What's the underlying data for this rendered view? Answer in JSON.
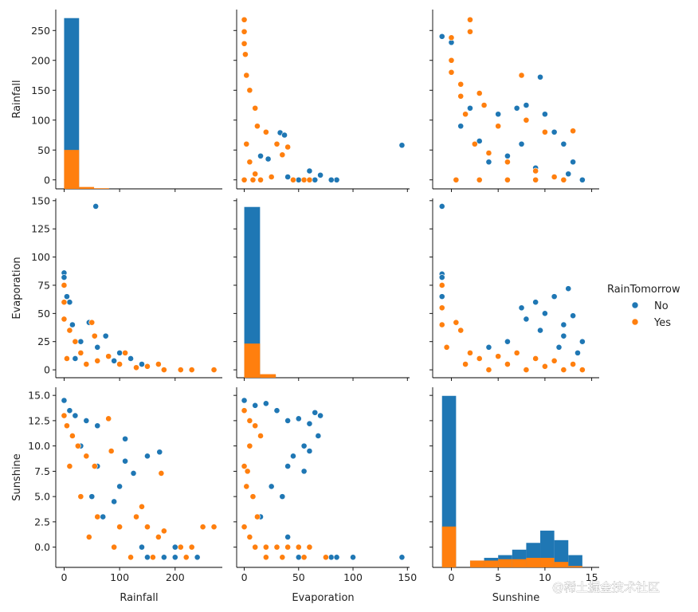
{
  "chart_data": {
    "type": "scatter",
    "variables": [
      "Rainfall",
      "Evaporation",
      "Sunshine"
    ],
    "hue": "RainTomorrow",
    "legend": {
      "title": "RainTomorrow",
      "placement": "right",
      "entries": [
        {
          "label": "No",
          "color": "#1f77b4"
        },
        {
          "label": "Yes",
          "color": "#ff7f0e"
        }
      ]
    },
    "axes": {
      "Rainfall": {
        "range": [
          -15,
          285
        ],
        "ticks": [
          0,
          100,
          200
        ],
        "tick_labels": [
          "0",
          "100",
          "200"
        ],
        "row_ticks": [
          0,
          50,
          100,
          150,
          200,
          250
        ],
        "row_tick_labels": [
          "0",
          "50",
          "100",
          "150",
          "200",
          "250"
        ]
      },
      "Evaporation": {
        "range": [
          -7,
          152
        ],
        "ticks": [
          0,
          50,
          100,
          150
        ],
        "tick_labels": [
          "0",
          "50",
          "100",
          "150"
        ],
        "row_ticks": [
          0,
          25,
          50,
          75,
          100,
          125,
          150
        ],
        "row_tick_labels": [
          "0",
          "25",
          "50",
          "75",
          "100",
          "125",
          "150"
        ]
      },
      "Sunshine": {
        "range": [
          -2,
          15.8
        ],
        "ticks": [
          0,
          5,
          10,
          15
        ],
        "tick_labels": [
          "0",
          "5",
          "10",
          "15"
        ],
        "row_ticks": [
          0,
          2.5,
          5,
          7.5,
          10,
          12.5,
          15
        ],
        "row_tick_labels": [
          "0.0",
          "2.5",
          "5.0",
          "7.5",
          "10.0",
          "12.5",
          "15.0"
        ]
      }
    },
    "histograms": {
      "Rainfall": {
        "bin_edges": [
          0,
          27,
          54,
          81,
          108,
          135,
          162,
          189,
          216,
          243,
          270
        ],
        "No": [
          272,
          0,
          0,
          0,
          0,
          0,
          0,
          0,
          0,
          0
        ],
        "Yes": [
          62,
          3,
          1,
          0,
          0,
          0,
          0,
          0,
          0,
          0
        ]
      },
      "Evaporation": {
        "bin_edges": [
          0,
          14.5,
          29,
          43.5,
          58,
          72.5,
          87,
          101.5,
          116,
          130.5,
          145
        ],
        "No": [
          145,
          2,
          0,
          0,
          0,
          0,
          0,
          0,
          0,
          0
        ],
        "Yes": [
          29,
          3,
          0,
          0,
          0,
          0,
          0,
          0,
          0,
          0
        ]
      },
      "Sunshine": {
        "bin_edges": [
          -1,
          0.5,
          2,
          3.5,
          5,
          6.5,
          8,
          9.5,
          11,
          12.5,
          14
        ],
        "No": [
          6.3,
          0,
          0.25,
          0.35,
          0.45,
          0.65,
          0.9,
          1.35,
          1.0,
          0.45
        ],
        "Yes": [
          1.5,
          0,
          0.25,
          0.25,
          0.3,
          0.3,
          0.35,
          0.35,
          0.2,
          0.05
        ]
      }
    },
    "pairs": [
      {
        "x": "Evaporation",
        "y": "Rainfall",
        "No": [
          [
            145,
            58
          ],
          [
            33,
            79
          ],
          [
            37,
            75
          ],
          [
            22,
            35
          ],
          [
            15,
            40
          ],
          [
            60,
            15
          ],
          [
            70,
            8
          ],
          [
            85,
            0
          ],
          [
            80,
            0
          ],
          [
            65,
            0
          ],
          [
            50,
            0
          ],
          [
            40,
            5
          ]
        ],
        "Yes": [
          [
            0,
            268
          ],
          [
            0,
            248
          ],
          [
            0,
            228
          ],
          [
            1,
            210
          ],
          [
            2,
            175
          ],
          [
            5,
            150
          ],
          [
            10,
            120
          ],
          [
            20,
            80
          ],
          [
            30,
            60
          ],
          [
            40,
            55
          ],
          [
            35,
            42
          ],
          [
            5,
            30
          ],
          [
            10,
            10
          ],
          [
            25,
            5
          ],
          [
            45,
            0
          ],
          [
            55,
            0
          ],
          [
            60,
            0
          ],
          [
            0,
            0
          ],
          [
            8,
            0
          ],
          [
            15,
            0
          ],
          [
            2,
            60
          ],
          [
            12,
            90
          ]
        ]
      },
      {
        "x": "Sunshine",
        "y": "Rainfall",
        "No": [
          [
            9.5,
            172
          ],
          [
            -1,
            240
          ],
          [
            0,
            230
          ],
          [
            2,
            120
          ],
          [
            5,
            110
          ],
          [
            7,
            120
          ],
          [
            8,
            125
          ],
          [
            10,
            110
          ],
          [
            11,
            80
          ],
          [
            12,
            60
          ],
          [
            13,
            30
          ],
          [
            14,
            0
          ],
          [
            12.5,
            10
          ],
          [
            9,
            20
          ],
          [
            6,
            40
          ],
          [
            3,
            65
          ],
          [
            1,
            90
          ],
          [
            4,
            30
          ],
          [
            7.5,
            60
          ]
        ],
        "Yes": [
          [
            2,
            268
          ],
          [
            2,
            248
          ],
          [
            0,
            238
          ],
          [
            0,
            200
          ],
          [
            0,
            180
          ],
          [
            1,
            160
          ],
          [
            3,
            145
          ],
          [
            3.5,
            125
          ],
          [
            7.5,
            175
          ],
          [
            1.5,
            110
          ],
          [
            5,
            90
          ],
          [
            8,
            100
          ],
          [
            10,
            80
          ],
          [
            13,
            82
          ],
          [
            4,
            45
          ],
          [
            6,
            30
          ],
          [
            9,
            15
          ],
          [
            11,
            5
          ],
          [
            0.5,
            0
          ],
          [
            3,
            0
          ],
          [
            6,
            0
          ],
          [
            9,
            0
          ],
          [
            12,
            0
          ],
          [
            2.5,
            60
          ],
          [
            1,
            140
          ]
        ]
      },
      {
        "x": "Rainfall",
        "y": "Evaporation",
        "No": [
          [
            57,
            145
          ],
          [
            0,
            86
          ],
          [
            0,
            82
          ],
          [
            5,
            65
          ],
          [
            10,
            60
          ],
          [
            15,
            40
          ],
          [
            45,
            42
          ],
          [
            75,
            30
          ],
          [
            100,
            15
          ],
          [
            120,
            10
          ],
          [
            140,
            5
          ],
          [
            60,
            20
          ],
          [
            30,
            25
          ],
          [
            90,
            8
          ],
          [
            20,
            10
          ]
        ],
        "Yes": [
          [
            0,
            75
          ],
          [
            0,
            60
          ],
          [
            0,
            45
          ],
          [
            10,
            35
          ],
          [
            20,
            25
          ],
          [
            50,
            42
          ],
          [
            55,
            30
          ],
          [
            110,
            15
          ],
          [
            170,
            5
          ],
          [
            180,
            0
          ],
          [
            210,
            0
          ],
          [
            230,
            0
          ],
          [
            270,
            0
          ],
          [
            150,
            3
          ],
          [
            100,
            5
          ],
          [
            60,
            8
          ],
          [
            30,
            15
          ],
          [
            5,
            10
          ],
          [
            80,
            12
          ],
          [
            130,
            2
          ],
          [
            40,
            5
          ]
        ]
      },
      {
        "x": "Sunshine",
        "y": "Evaporation",
        "No": [
          [
            -1,
            145
          ],
          [
            -1,
            85
          ],
          [
            -1,
            82
          ],
          [
            -1,
            65
          ],
          [
            7.5,
            55
          ],
          [
            9,
            60
          ],
          [
            11,
            65
          ],
          [
            12.5,
            72
          ],
          [
            10,
            50
          ],
          [
            8,
            45
          ],
          [
            13,
            48
          ],
          [
            12,
            30
          ],
          [
            14,
            25
          ],
          [
            13.5,
            15
          ],
          [
            6,
            25
          ],
          [
            4,
            20
          ],
          [
            11.5,
            20
          ],
          [
            9.5,
            35
          ],
          [
            12,
            40
          ]
        ],
        "Yes": [
          [
            -1,
            75
          ],
          [
            -1,
            55
          ],
          [
            -1,
            40
          ],
          [
            0.5,
            42
          ],
          [
            1,
            35
          ],
          [
            -0.5,
            20
          ],
          [
            2,
            15
          ],
          [
            3,
            10
          ],
          [
            5,
            12
          ],
          [
            7,
            15
          ],
          [
            9,
            10
          ],
          [
            11,
            8
          ],
          [
            13,
            5
          ],
          [
            14,
            0
          ],
          [
            12,
            0
          ],
          [
            4,
            0
          ],
          [
            8,
            0
          ],
          [
            10,
            3
          ],
          [
            1.5,
            5
          ],
          [
            6,
            5
          ]
        ]
      },
      {
        "x": "Rainfall",
        "y": "Sunshine",
        "No": [
          [
            0,
            14.5
          ],
          [
            10,
            13.5
          ],
          [
            20,
            13
          ],
          [
            40,
            12.5
          ],
          [
            60,
            12
          ],
          [
            80,
            12.7
          ],
          [
            110,
            10.7
          ],
          [
            150,
            9.0
          ],
          [
            172,
            9.4
          ],
          [
            125,
            7.3
          ],
          [
            110,
            8.5
          ],
          [
            100,
            6
          ],
          [
            90,
            4.5
          ],
          [
            130,
            3
          ],
          [
            200,
            0
          ],
          [
            240,
            -1
          ],
          [
            200,
            -1
          ],
          [
            180,
            -1
          ],
          [
            150,
            -1
          ],
          [
            140,
            0
          ],
          [
            60,
            8
          ],
          [
            30,
            10
          ],
          [
            50,
            5
          ],
          [
            70,
            3
          ]
        ],
        "Yes": [
          [
            0,
            13
          ],
          [
            5,
            12
          ],
          [
            15,
            11
          ],
          [
            25,
            10
          ],
          [
            40,
            9
          ],
          [
            55,
            8
          ],
          [
            80,
            12.7
          ],
          [
            85,
            9.5
          ],
          [
            175,
            7.3
          ],
          [
            180,
            1.6
          ],
          [
            140,
            4
          ],
          [
            130,
            3
          ],
          [
            150,
            2
          ],
          [
            170,
            1
          ],
          [
            250,
            2
          ],
          [
            270,
            2
          ],
          [
            210,
            0
          ],
          [
            230,
            0
          ],
          [
            220,
            -1
          ],
          [
            160,
            -1
          ],
          [
            120,
            -1
          ],
          [
            90,
            0
          ],
          [
            60,
            3
          ],
          [
            30,
            5
          ],
          [
            10,
            8
          ],
          [
            45,
            1
          ],
          [
            100,
            2
          ]
        ]
      },
      {
        "x": "Evaporation",
        "y": "Sunshine",
        "No": [
          [
            0,
            14.5
          ],
          [
            10,
            14
          ],
          [
            20,
            14.2
          ],
          [
            30,
            13.5
          ],
          [
            40,
            12.5
          ],
          [
            50,
            12.7
          ],
          [
            60,
            12.2
          ],
          [
            65,
            13.3
          ],
          [
            70,
            13
          ],
          [
            68,
            11
          ],
          [
            55,
            10
          ],
          [
            45,
            9
          ],
          [
            40,
            8
          ],
          [
            60,
            9.5
          ],
          [
            55,
            7.5
          ],
          [
            80,
            -1
          ],
          [
            100,
            -1
          ],
          [
            145,
            -1
          ],
          [
            85,
            -1
          ],
          [
            50,
            -1
          ],
          [
            40,
            1
          ],
          [
            35,
            5
          ],
          [
            25,
            6
          ],
          [
            15,
            3
          ]
        ],
        "Yes": [
          [
            0,
            13.5
          ],
          [
            5,
            12.5
          ],
          [
            10,
            12
          ],
          [
            15,
            11
          ],
          [
            5,
            10
          ],
          [
            0,
            8
          ],
          [
            2,
            6
          ],
          [
            8,
            5
          ],
          [
            12,
            3
          ],
          [
            0,
            2
          ],
          [
            5,
            1
          ],
          [
            10,
            0
          ],
          [
            20,
            0
          ],
          [
            30,
            0
          ],
          [
            40,
            0
          ],
          [
            50,
            0
          ],
          [
            60,
            0
          ],
          [
            75,
            -1
          ],
          [
            55,
            -1
          ],
          [
            35,
            -1
          ],
          [
            20,
            -1
          ],
          [
            3,
            7.5
          ]
        ]
      }
    ]
  },
  "watermark": {
    "text": "@稀土掘金技术社区"
  }
}
